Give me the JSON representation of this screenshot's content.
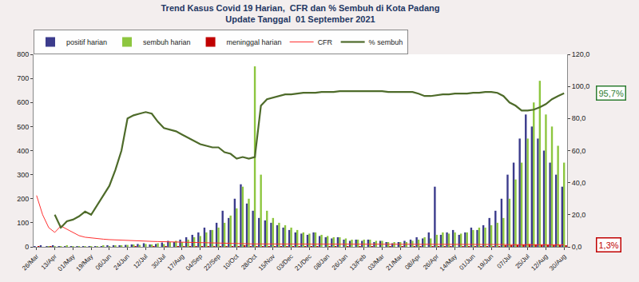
{
  "chart_data": {
    "type": "bar",
    "title": "Trend Kasus Covid 19 Harian,  CFR dan % Sembuh di Kota Padang",
    "subtitle": "Update Tanggal  01 September 2021",
    "categories": [
      "26/Mar",
      null,
      null,
      "13/Apr",
      null,
      null,
      "01/May",
      null,
      null,
      "19/May",
      null,
      null,
      "06/Jun",
      null,
      null,
      "24/Jun",
      null,
      null,
      "12/Jul",
      null,
      null,
      "30/Jul",
      null,
      null,
      "17/Aug",
      null,
      null,
      "04/Sep",
      null,
      null,
      "22/Sep",
      null,
      null,
      "10/Oct",
      null,
      null,
      "28/Oct",
      null,
      null,
      "15/Nov",
      null,
      null,
      "03/Dec",
      null,
      null,
      "21/Dec",
      null,
      null,
      "08/Jan",
      null,
      null,
      "26/Jan",
      null,
      null,
      "13/Feb",
      null,
      null,
      "03/Mar",
      null,
      null,
      "21/Mar",
      null,
      null,
      "08/Apr",
      null,
      null,
      "26/Apr",
      null,
      null,
      "14/May",
      null,
      null,
      "01/Jun",
      null,
      null,
      "19/Jun",
      null,
      null,
      "07/Jul",
      null,
      null,
      "25/Jul",
      null,
      null,
      "12/Aug",
      null,
      null,
      "30/Aug"
    ],
    "series": [
      {
        "name": "positif harian",
        "type": "bar",
        "color": "#3b3b8c",
        "values": [
          2,
          5,
          3,
          4,
          2,
          3,
          1,
          2,
          1,
          1,
          2,
          3,
          5,
          4,
          6,
          8,
          10,
          12,
          15,
          10,
          12,
          18,
          25,
          20,
          30,
          40,
          50,
          60,
          80,
          70,
          100,
          150,
          120,
          200,
          260,
          180,
          150,
          120,
          110,
          100,
          90,
          80,
          70,
          60,
          55,
          50,
          60,
          45,
          40,
          35,
          40,
          30,
          25,
          30,
          25,
          30,
          20,
          25,
          20,
          15,
          20,
          25,
          30,
          40,
          35,
          60,
          250,
          50,
          60,
          70,
          50,
          60,
          80,
          70,
          90,
          120,
          150,
          200,
          300,
          350,
          450,
          550,
          500,
          450,
          400,
          350,
          300,
          250
        ]
      },
      {
        "name": "sembuh harian",
        "type": "bar",
        "color": "#8dc63f",
        "values": [
          0,
          0,
          1,
          2,
          3,
          5,
          2,
          3,
          2,
          3,
          2,
          4,
          3,
          5,
          6,
          8,
          10,
          8,
          12,
          10,
          15,
          12,
          20,
          25,
          20,
          30,
          40,
          45,
          60,
          70,
          80,
          100,
          130,
          160,
          250,
          200,
          750,
          300,
          150,
          120,
          100,
          90,
          80,
          70,
          60,
          55,
          60,
          50,
          45,
          40,
          40,
          35,
          30,
          30,
          30,
          30,
          25,
          25,
          20,
          20,
          20,
          20,
          25,
          30,
          40,
          35,
          50,
          60,
          55,
          60,
          55,
          60,
          70,
          80,
          80,
          90,
          100,
          120,
          200,
          280,
          350,
          450,
          600,
          690,
          550,
          500,
          420,
          350
        ]
      },
      {
        "name": "meninggal harian",
        "type": "bar",
        "color": "#c00000",
        "values": [
          1,
          0,
          1,
          0,
          0,
          0,
          0,
          0,
          0,
          0,
          0,
          0,
          0,
          0,
          0,
          0,
          1,
          0,
          0,
          1,
          0,
          1,
          0,
          1,
          1,
          1,
          2,
          1,
          2,
          2,
          3,
          2,
          3,
          3,
          4,
          2,
          2,
          2,
          1,
          2,
          1,
          1,
          1,
          1,
          1,
          1,
          1,
          0,
          1,
          1,
          0,
          1,
          0,
          1,
          0,
          1,
          0,
          0,
          1,
          0,
          1,
          0,
          1,
          1,
          0,
          1,
          2,
          1,
          1,
          0,
          1,
          1,
          1,
          1,
          2,
          2,
          3,
          4,
          6,
          8,
          10,
          12,
          10,
          9,
          8,
          7,
          6,
          5
        ]
      },
      {
        "name": "CFR",
        "type": "line",
        "axis": "y2",
        "color": "#ff3030",
        "line_style": "thin",
        "values": [
          32,
          20,
          12,
          9,
          13,
          11,
          9,
          7,
          6,
          5.5,
          5,
          4.8,
          4.5,
          4.3,
          4.2,
          4,
          3.8,
          3.6,
          3.5,
          3.4,
          3.3,
          3.2,
          3.1,
          3,
          2.9,
          2.8,
          2.6,
          2.5,
          2.3,
          2.2,
          2.1,
          2,
          2,
          1.9,
          1.9,
          1.8,
          1.8,
          1.8,
          1.8,
          1.8,
          1.8,
          1.8,
          1.8,
          1.8,
          1.8,
          1.8,
          1.8,
          1.7,
          1.7,
          1.7,
          1.7,
          1.7,
          1.7,
          1.7,
          1.7,
          1.7,
          1.7,
          1.7,
          1.6,
          1.6,
          1.6,
          1.6,
          1.6,
          1.6,
          1.6,
          1.6,
          1.6,
          1.6,
          1.5,
          1.5,
          1.5,
          1.5,
          1.5,
          1.5,
          1.5,
          1.5,
          1.5,
          1.5,
          1.4,
          1.4,
          1.4,
          1.3,
          1.3,
          1.3,
          1.3,
          1.3,
          1.3,
          1.3
        ]
      },
      {
        "name": "% sembuh",
        "type": "line",
        "axis": "y2",
        "color": "#4e6b2a",
        "line_style": "thick",
        "values": [
          null,
          null,
          null,
          20,
          12,
          16,
          17,
          19,
          22,
          20,
          26,
          32,
          38,
          48,
          60,
          80,
          82,
          83,
          84,
          83,
          78,
          74,
          73,
          72,
          70,
          68,
          66,
          64,
          63,
          62,
          62,
          59,
          58,
          55,
          56,
          55,
          56,
          88,
          92,
          93,
          94,
          95,
          95,
          95.5,
          96,
          96,
          96,
          96.5,
          96.5,
          96.5,
          97,
          97,
          97,
          97,
          97,
          97,
          97,
          97,
          96.5,
          96.5,
          96.5,
          96.5,
          96.5,
          95.5,
          94,
          94,
          94.5,
          95,
          95,
          95.5,
          95.5,
          95.5,
          96,
          96,
          96.5,
          96.5,
          96,
          94,
          90,
          88,
          85,
          85,
          85.5,
          87,
          89,
          92,
          94,
          95.7
        ]
      }
    ],
    "ylim": [
      0,
      800
    ],
    "yticks": [
      0,
      100,
      200,
      300,
      400,
      500,
      600,
      700,
      800
    ],
    "y2lim": [
      0,
      120
    ],
    "y2ticks": [
      {
        "value": 0,
        "label": "0,0"
      },
      {
        "value": 20,
        "label": "20,0"
      },
      {
        "value": 40,
        "label": "40,0"
      },
      {
        "value": 60,
        "label": "60,0"
      },
      {
        "value": 80,
        "label": "80,0"
      },
      {
        "value": 100,
        "label": "100,0"
      },
      {
        "value": 120,
        "label": "120,0"
      }
    ],
    "annotations": [
      {
        "text": "95,7%",
        "value": 95.7,
        "axis": "y2",
        "color": "#2e7d32"
      },
      {
        "text": "1,3%",
        "value": 1.3,
        "axis": "y2",
        "color": "#c00000"
      }
    ],
    "grid": false,
    "stacked": false,
    "legend": "top"
  }
}
